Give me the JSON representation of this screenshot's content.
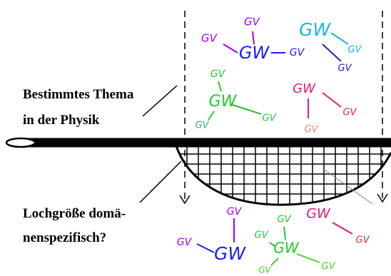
{
  "labels": {
    "topic_line1": "Bestimmtes Thema",
    "topic_line2": "in der Physik",
    "question_line1": "Lochgröße domä-",
    "question_line2": "nenspezifisch?"
  },
  "terms": {
    "gv": "GV",
    "gw": "GW"
  },
  "colors": {
    "purple": "#a200ff",
    "blue": "#1a1aff",
    "cyan": "#19b6e8",
    "navy": "#2b1ab8",
    "green": "#22c92a",
    "lime": "#44d61c",
    "magenta": "#e8197d",
    "red": "#e8282a",
    "salmon": "#f07a7a",
    "teal": "#1fb39a",
    "black": "#000000"
  }
}
